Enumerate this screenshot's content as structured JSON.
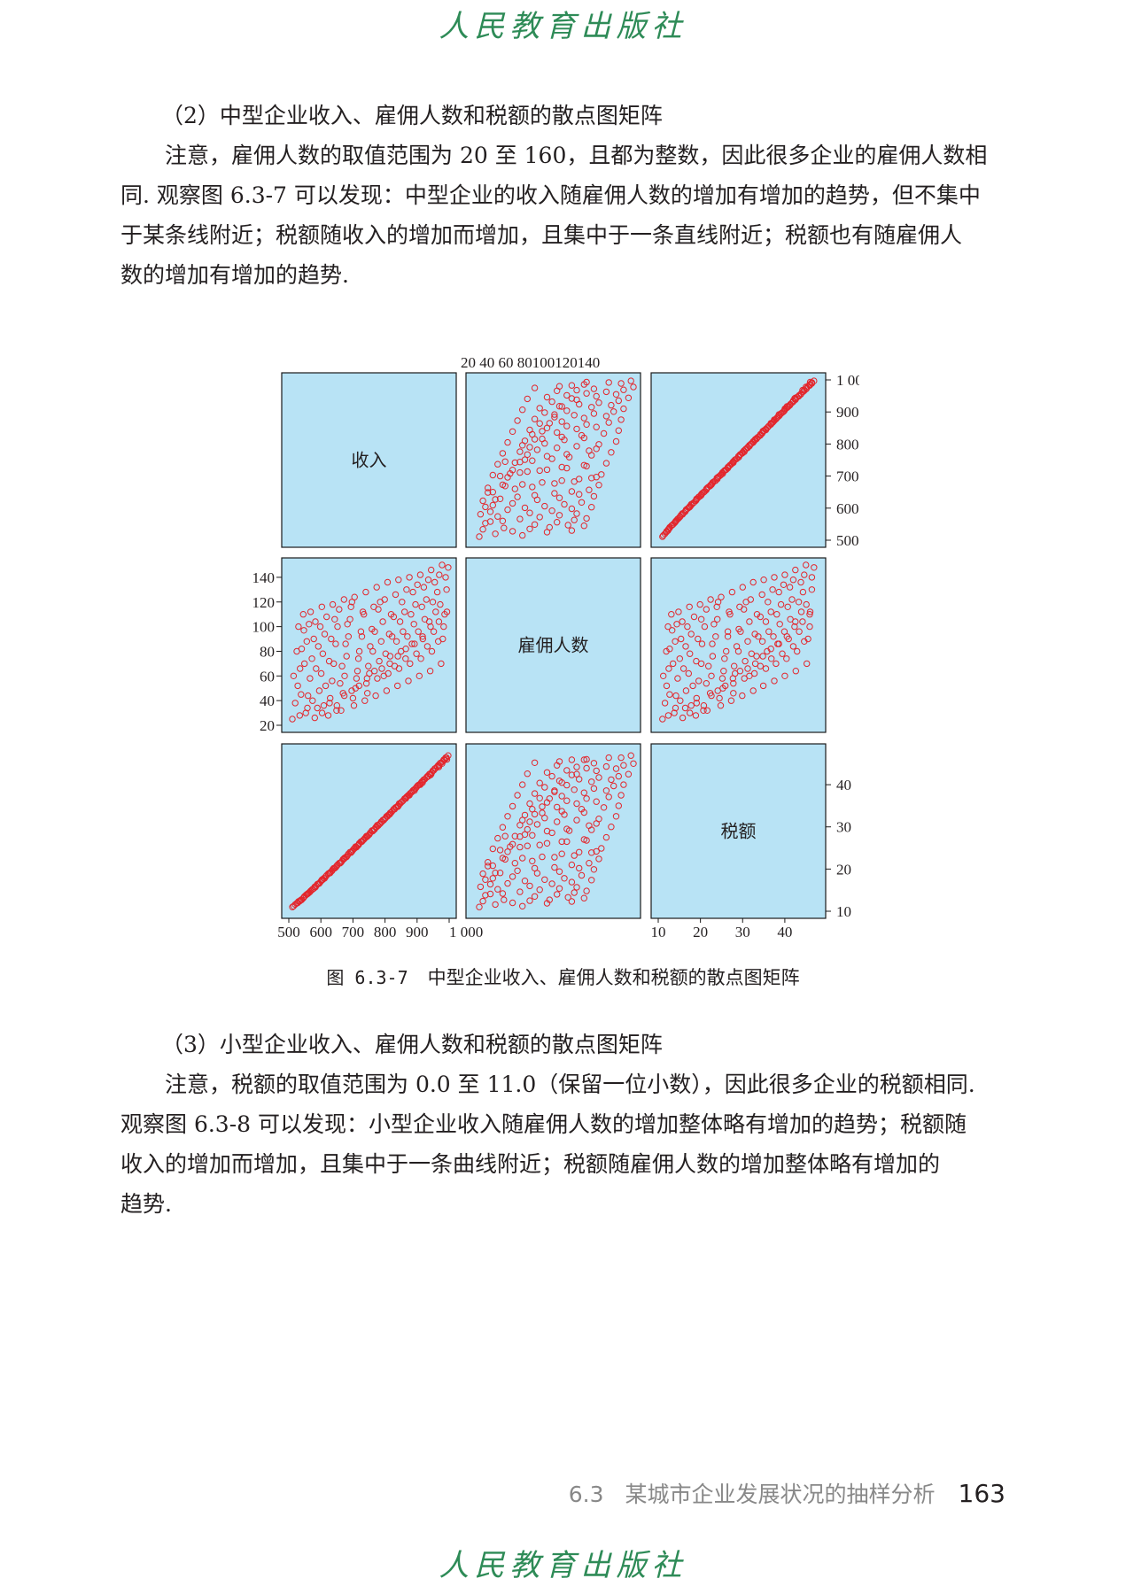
{
  "header": {
    "publisher": "人民教育出版社"
  },
  "section2": {
    "heading": "（2）中型企业收入、雇佣人数和税额的散点图矩阵",
    "para_lines": [
      "注意，雇佣人数的取值范围为 20 至 160，且都为整数，因此很多企业的雇佣人数相",
      "同. 观察图 6.3-7 可以发现：中型企业的收入随雇佣人数的增加有增加的趋势，但不集中",
      "于某条线附近；税额随收入的增加而增加，且集中于一条直线附近；税额也有随雇佣人",
      "数的增加有增加的趋势."
    ]
  },
  "figure": {
    "number": "图 6.3-7",
    "title": "中型企业收入、雇佣人数和税额的散点图矩阵",
    "panel_bg": "#b8e3f5",
    "marker_color": "#e3262c"
  },
  "chart_data": {
    "type": "scatter",
    "subtype": "scatter-matrix",
    "variables": [
      "收入",
      "雇佣人数",
      "税额"
    ],
    "ranges": {
      "收入": [
        500,
        1000
      ],
      "雇佣人数": [
        20,
        150
      ],
      "税额": [
        10,
        48
      ]
    },
    "tick_labels": {
      "收入": [
        "500",
        "600",
        "700",
        "800",
        "900",
        "1 000"
      ],
      "雇佣人数": [
        "20",
        "40",
        "60",
        "80",
        "100",
        "120",
        "140"
      ],
      "税额": [
        "10",
        "20",
        "30",
        "40"
      ]
    },
    "top_axis_text": "20 40 60 80100120140",
    "relationships": {
      "收入_vs_雇佣人数": "positive, widely spread band",
      "税额_vs_收入": "strong linear, 税额 ≈ 0.075 × 收入 − 27",
      "税额_vs_雇佣人数": "positive, widely spread band"
    },
    "points": [
      [
        511,
        25,
        11.0
      ],
      [
        520,
        38,
        11.6
      ],
      [
        528,
        52,
        12.0
      ],
      [
        535,
        66,
        12.5
      ],
      [
        540,
        82,
        12.7
      ],
      [
        547,
        97,
        13.3
      ],
      [
        553,
        30,
        13.8
      ],
      [
        560,
        44,
        14.2
      ],
      [
        566,
        58,
        14.6
      ],
      [
        572,
        74,
        15.1
      ],
      [
        578,
        90,
        15.4
      ],
      [
        583,
        104,
        15.7
      ],
      [
        589,
        34,
        16.4
      ],
      [
        595,
        48,
        16.6
      ],
      [
        601,
        62,
        17.2
      ],
      [
        606,
        78,
        17.5
      ],
      [
        612,
        94,
        17.8
      ],
      [
        618,
        108,
        18.5
      ],
      [
        623,
        28,
        18.9
      ],
      [
        629,
        42,
        19.1
      ],
      [
        635,
        56,
        19.6
      ],
      [
        640,
        70,
        20.2
      ],
      [
        646,
        86,
        20.4
      ],
      [
        652,
        100,
        21.0
      ],
      [
        657,
        114,
        21.4
      ],
      [
        663,
        32,
        21.6
      ],
      [
        669,
        46,
        22.3
      ],
      [
        674,
        60,
        22.6
      ],
      [
        680,
        76,
        22.9
      ],
      [
        686,
        92,
        23.6
      ],
      [
        691,
        106,
        24.0
      ],
      [
        697,
        120,
        24.2
      ],
      [
        703,
        36,
        24.8
      ],
      [
        708,
        50,
        25.3
      ],
      [
        714,
        64,
        25.5
      ],
      [
        720,
        80,
        26.1
      ],
      [
        725,
        96,
        26.5
      ],
      [
        731,
        112,
        26.8
      ],
      [
        737,
        40,
        27.3
      ],
      [
        742,
        54,
        27.8
      ],
      [
        748,
        68,
        28.0
      ],
      [
        754,
        84,
        28.6
      ],
      [
        759,
        98,
        29.1
      ],
      [
        765,
        116,
        29.3
      ],
      [
        771,
        44,
        29.9
      ],
      [
        776,
        58,
        30.4
      ],
      [
        782,
        72,
        30.6
      ],
      [
        788,
        88,
        31.2
      ],
      [
        793,
        104,
        31.6
      ],
      [
        799,
        122,
        31.9
      ],
      [
        805,
        48,
        32.5
      ],
      [
        810,
        62,
        32.8
      ],
      [
        816,
        76,
        33.3
      ],
      [
        822,
        92,
        33.7
      ],
      [
        827,
        108,
        34.2
      ],
      [
        833,
        126,
        34.6
      ],
      [
        839,
        52,
        34.9
      ],
      [
        844,
        66,
        35.5
      ],
      [
        850,
        80,
        35.8
      ],
      [
        856,
        96,
        36.2
      ],
      [
        861,
        112,
        36.7
      ],
      [
        867,
        130,
        37.1
      ],
      [
        873,
        56,
        37.5
      ],
      [
        878,
        70,
        37.9
      ],
      [
        884,
        86,
        38.3
      ],
      [
        890,
        102,
        38.8
      ],
      [
        895,
        118,
        39.1
      ],
      [
        901,
        134,
        39.7
      ],
      [
        907,
        60,
        40.0
      ],
      [
        912,
        74,
        40.4
      ],
      [
        918,
        90,
        40.9
      ],
      [
        924,
        106,
        41.3
      ],
      [
        929,
        122,
        41.7
      ],
      [
        935,
        138,
        42.0
      ],
      [
        941,
        64,
        42.6
      ],
      [
        946,
        80,
        42.9
      ],
      [
        952,
        96,
        43.4
      ],
      [
        958,
        112,
        43.9
      ],
      [
        963,
        128,
        44.3
      ],
      [
        969,
        142,
        44.6
      ],
      [
        975,
        70,
        45.2
      ],
      [
        980,
        90,
        45.5
      ],
      [
        986,
        110,
        45.9
      ],
      [
        992,
        130,
        46.4
      ],
      [
        997,
        148,
        46.9
      ],
      [
        515,
        60,
        11.2
      ],
      [
        525,
        80,
        11.9
      ],
      [
        538,
        45,
        12.7
      ],
      [
        549,
        70,
        13.5
      ],
      [
        556,
        88,
        14.0
      ],
      [
        563,
        102,
        14.4
      ],
      [
        574,
        40,
        15.2
      ],
      [
        585,
        66,
        16.0
      ],
      [
        592,
        84,
        16.5
      ],
      [
        598,
        100,
        16.9
      ],
      [
        609,
        36,
        17.8
      ],
      [
        615,
        52,
        18.2
      ],
      [
        626,
        72,
        19.0
      ],
      [
        632,
        90,
        19.4
      ],
      [
        643,
        106,
        20.2
      ],
      [
        649,
        32,
        20.7
      ],
      [
        660,
        54,
        21.4
      ],
      [
        666,
        68,
        21.9
      ],
      [
        677,
        86,
        22.8
      ],
      [
        683,
        102,
        23.2
      ],
      [
        694,
        116,
        23.9
      ],
      [
        700,
        42,
        24.5
      ],
      [
        711,
        58,
        25.2
      ],
      [
        717,
        74,
        25.7
      ],
      [
        728,
        92,
        26.5
      ],
      [
        734,
        110,
        27.0
      ],
      [
        745,
        46,
        27.8
      ],
      [
        751,
        62,
        28.2
      ],
      [
        762,
        80,
        29.0
      ],
      [
        768,
        96,
        29.5
      ],
      [
        779,
        114,
        30.3
      ],
      [
        785,
        120,
        30.8
      ],
      [
        796,
        60,
        31.6
      ],
      [
        802,
        78,
        32.1
      ],
      [
        813,
        94,
        32.9
      ],
      [
        819,
        110,
        33.4
      ],
      [
        830,
        68,
        34.2
      ],
      [
        836,
        88,
        34.7
      ],
      [
        847,
        104,
        35.5
      ],
      [
        853,
        120,
        36.0
      ],
      [
        864,
        74,
        36.8
      ],
      [
        870,
        92,
        37.3
      ],
      [
        881,
        110,
        38.1
      ],
      [
        887,
        128,
        38.6
      ],
      [
        898,
        78,
        39.4
      ],
      [
        904,
        96,
        39.9
      ],
      [
        915,
        116,
        40.7
      ],
      [
        921,
        132,
        41.2
      ],
      [
        932,
        84,
        42.0
      ],
      [
        938,
        104,
        42.5
      ],
      [
        949,
        120,
        43.3
      ],
      [
        955,
        136,
        43.8
      ],
      [
        966,
        88,
        44.6
      ],
      [
        972,
        118,
        45.1
      ],
      [
        983,
        100,
        45.9
      ],
      [
        989,
        140,
        46.4
      ],
      [
        530,
        100,
        12.3
      ],
      [
        545,
        110,
        13.1
      ],
      [
        568,
        112,
        14.8
      ],
      [
        603,
        116,
        17.4
      ],
      [
        637,
        118,
        19.9
      ],
      [
        672,
        122,
        22.4
      ],
      [
        705,
        124,
        24.9
      ],
      [
        740,
        128,
        27.5
      ],
      [
        774,
        132,
        30.0
      ],
      [
        808,
        136,
        32.5
      ],
      [
        842,
        138,
        35.0
      ],
      [
        876,
        140,
        37.5
      ],
      [
        910,
        142,
        40.0
      ],
      [
        944,
        146,
        42.5
      ],
      [
        978,
        150,
        45.0
      ],
      [
        534,
        28,
        12.4
      ],
      [
        558,
        34,
        14.1
      ],
      [
        581,
        26,
        15.8
      ],
      [
        604,
        30,
        17.5
      ],
      [
        627,
        38,
        19.1
      ],
      [
        650,
        36,
        20.8
      ],
      [
        673,
        44,
        22.6
      ],
      [
        696,
        48,
        24.1
      ],
      [
        719,
        52,
        25.9
      ],
      [
        744,
        58,
        27.7
      ],
      [
        767,
        64,
        29.4
      ],
      [
        790,
        66,
        31.2
      ],
      [
        815,
        70,
        33.0
      ],
      [
        840,
        76,
        34.8
      ],
      [
        865,
        82,
        36.7
      ],
      [
        892,
        86,
        38.6
      ],
      [
        917,
        92,
        40.5
      ],
      [
        942,
        100,
        42.3
      ],
      [
        968,
        104,
        44.2
      ],
      [
        993,
        112,
        46.0
      ]
    ]
  },
  "section3": {
    "heading": "（3）小型企业收入、雇佣人数和税额的散点图矩阵",
    "para_lines": [
      "注意，税额的取值范围为 0.0 至 11.0（保留一位小数），因此很多企业的税额相同.",
      "观察图 6.3-8 可以发现：小型企业收入随雇佣人数的增加整体略有增加的趋势；税额随",
      "收入的增加而增加，且集中于一条曲线附近；税额随雇佣人数的增加整体略有增加的",
      "趋势."
    ]
  },
  "footer": {
    "section": "6.3",
    "title": "某城市企业发展状况的抽样分析",
    "page": "163"
  }
}
